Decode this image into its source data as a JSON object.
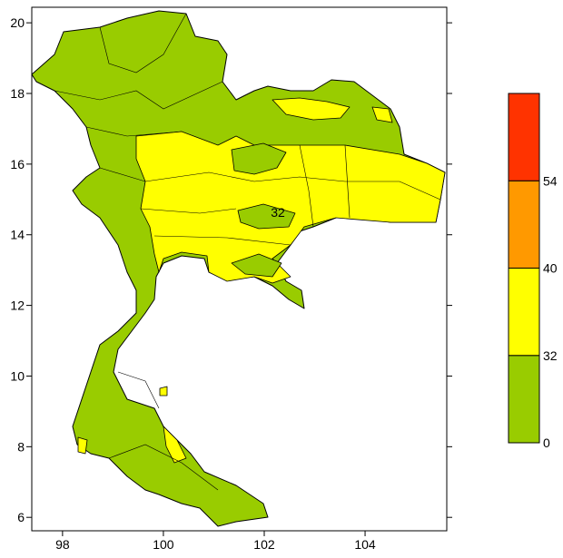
{
  "map": {
    "xlim": [
      97.39,
      105.62
    ],
    "ylim": [
      5.62,
      20.44
    ],
    "xticks": [
      98,
      100,
      102,
      104
    ],
    "yticks": [
      6,
      8,
      10,
      12,
      14,
      16,
      18,
      20
    ],
    "contour_labels": [
      "32"
    ],
    "colorbar": {
      "levels": [
        0,
        32,
        40,
        54
      ],
      "colors": [
        "#99cc00",
        "#ffff00",
        "#ff9900",
        "#ff3300"
      ]
    }
  }
}
